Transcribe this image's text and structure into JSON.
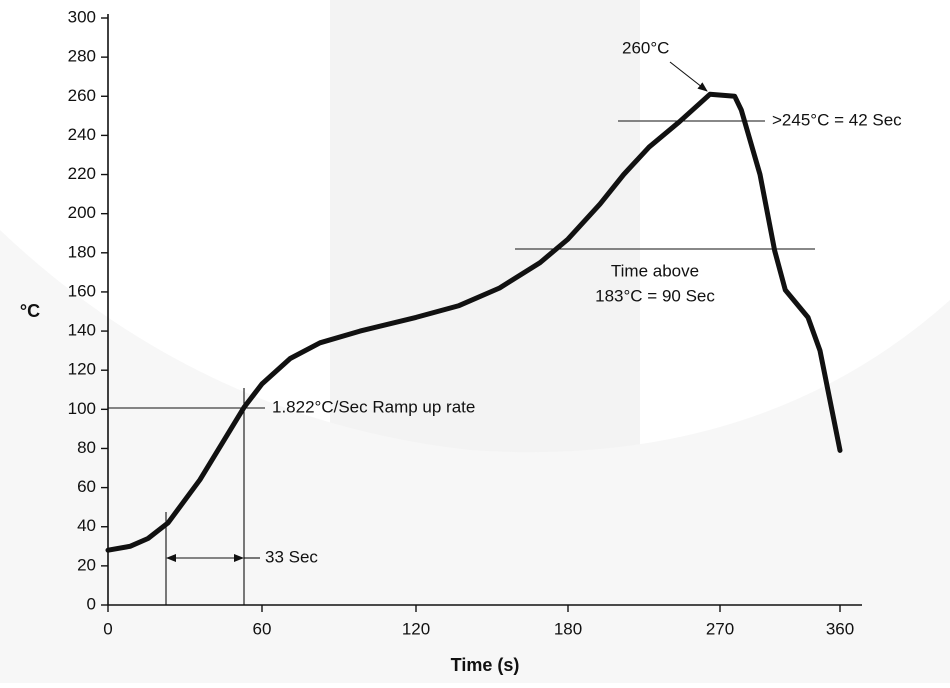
{
  "chart_data": {
    "type": "line",
    "xlabel": "Time (s)",
    "ylabel": "°C",
    "x": [
      0,
      8.6,
      15.6,
      23.4,
      35.8,
      53,
      60,
      71,
      82.6,
      98.2,
      120,
      137,
      153,
      169,
      180,
      199,
      213,
      228,
      246,
      264,
      281,
      286,
      300,
      311,
      319,
      336,
      345,
      360
    ],
    "values": [
      28,
      30,
      34,
      42,
      64,
      101,
      113,
      126,
      134,
      140,
      147,
      153,
      162,
      175,
      187,
      205,
      220,
      234,
      247,
      261,
      260,
      253,
      220,
      181,
      161,
      147,
      130,
      79
    ],
    "color": "#111111",
    "xlim": [
      0,
      360
    ],
    "xticks": [
      0,
      60,
      120,
      180,
      270,
      360
    ],
    "ylim": [
      0,
      300
    ],
    "yticks": [
      0,
      20,
      40,
      60,
      80,
      100,
      120,
      140,
      160,
      180,
      200,
      220,
      240,
      260,
      280,
      300
    ],
    "grid": false,
    "annotations": [
      "260°C",
      ">245°C = 42 Sec",
      "Time above",
      "183°C = 90 Sec",
      "1.822°C/Sec Ramp up rate",
      "33 Sec"
    ]
  }
}
